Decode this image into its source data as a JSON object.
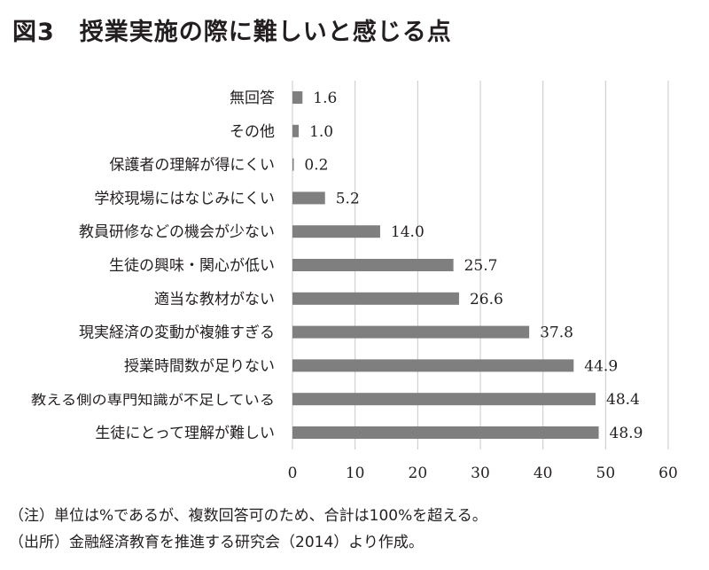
{
  "title": "図3　授業実施の際に難しいと感じる点",
  "notes": {
    "note1": "（注）単位は%であるが、複数回答可のため、合計は100%を超える。",
    "note2": "（出所）金融経済教育を推進する研究会（2014）より作成。"
  },
  "chart_data": {
    "type": "bar",
    "orientation": "horizontal",
    "categories": [
      "無回答",
      "その他",
      "保護者の理解が得にくい",
      "学校現場にはなじみにくい",
      "教員研修などの機会が少ない",
      "生徒の興味・関心が低い",
      "適当な教材がない",
      "現実経済の変動が複雑すぎる",
      "授業時間数が足りない",
      "教える側の専門知識が不足している",
      "生徒にとって理解が難しい"
    ],
    "values": [
      1.6,
      1.0,
      0.2,
      5.2,
      14.0,
      25.7,
      26.6,
      37.8,
      44.9,
      48.4,
      48.9
    ],
    "value_labels": [
      "1.6",
      "1.0",
      "0.2",
      "5.2",
      "14.0",
      "25.7",
      "26.6",
      "37.8",
      "44.9",
      "48.4",
      "48.9"
    ],
    "xlim": [
      0,
      60
    ],
    "xticks": [
      0,
      10,
      20,
      30,
      40,
      50,
      60
    ],
    "grid": true,
    "bar_color": "#7f7f7f",
    "grid_color": "#c8c8c8"
  }
}
